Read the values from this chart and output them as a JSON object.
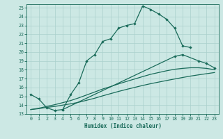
{
  "xlabel": "Humidex (Indice chaleur)",
  "bg_color": "#cce8e4",
  "grid_color": "#aad0cc",
  "line_color": "#1a6b5a",
  "xlim": [
    -0.5,
    23.5
  ],
  "ylim": [
    13,
    25.4
  ],
  "yticks": [
    13,
    14,
    15,
    16,
    17,
    18,
    19,
    20,
    21,
    22,
    23,
    24,
    25
  ],
  "xticks": [
    0,
    1,
    2,
    3,
    4,
    5,
    6,
    7,
    8,
    9,
    10,
    11,
    12,
    13,
    14,
    15,
    16,
    17,
    18,
    19,
    20,
    21,
    22,
    23
  ],
  "curves": [
    {
      "x": [
        0,
        1,
        2,
        3,
        4,
        5,
        6,
        7,
        8,
        9,
        10,
        11,
        12,
        13,
        14,
        15,
        16,
        17,
        18,
        19,
        20
      ],
      "y": [
        15.2,
        14.7,
        13.7,
        13.4,
        13.5,
        15.2,
        16.5,
        19.0,
        19.7,
        21.2,
        21.5,
        22.7,
        23.0,
        23.2,
        25.2,
        24.8,
        24.3,
        23.7,
        22.7,
        20.7,
        20.5
      ],
      "markers": true
    },
    {
      "x": [
        4,
        18,
        19,
        21,
        22,
        23
      ],
      "y": [
        13.5,
        19.5,
        19.7,
        19.0,
        18.7,
        18.2
      ],
      "markers": true
    },
    {
      "x": [
        0,
        1,
        2,
        3,
        4,
        5,
        6,
        7,
        8,
        9,
        10,
        11,
        12,
        13,
        14,
        15,
        16,
        17,
        18,
        19,
        20,
        21,
        22,
        23
      ],
      "y": [
        13.5,
        13.6,
        13.75,
        13.85,
        14.0,
        14.15,
        14.32,
        14.55,
        14.78,
        15.05,
        15.3,
        15.55,
        15.78,
        16.0,
        16.22,
        16.42,
        16.6,
        16.78,
        16.95,
        17.12,
        17.28,
        17.42,
        17.55,
        17.68
      ],
      "markers": false
    },
    {
      "x": [
        0,
        1,
        2,
        3,
        4,
        5,
        6,
        7,
        8,
        9,
        10,
        11,
        12,
        13,
        14,
        15,
        16,
        17,
        18,
        19,
        20,
        21,
        22,
        23
      ],
      "y": [
        13.5,
        13.65,
        13.85,
        14.05,
        14.28,
        14.52,
        14.82,
        15.15,
        15.48,
        15.82,
        16.1,
        16.4,
        16.68,
        16.95,
        17.22,
        17.48,
        17.68,
        17.88,
        18.05,
        18.15,
        18.22,
        18.22,
        18.15,
        18.0
      ],
      "markers": false
    }
  ]
}
